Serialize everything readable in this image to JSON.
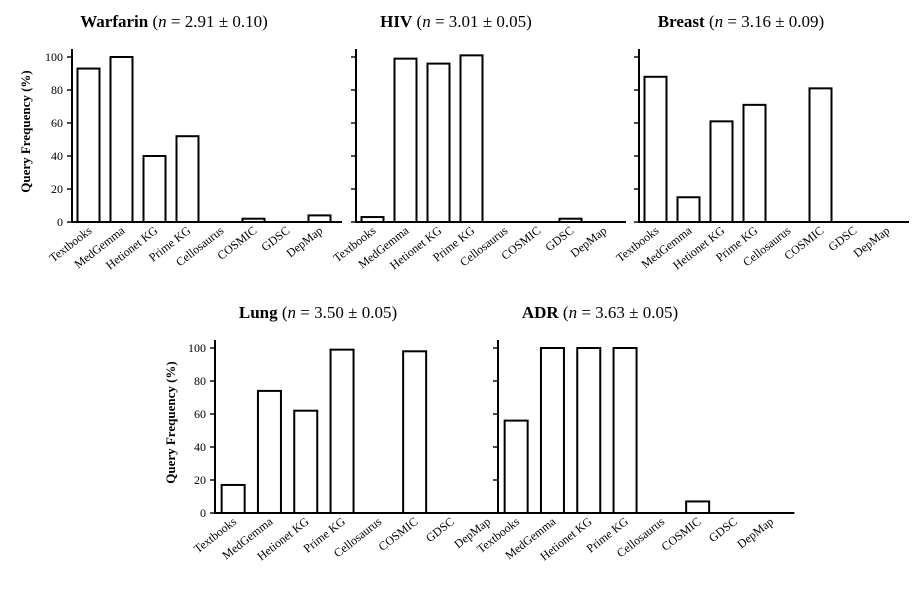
{
  "chart_data": [
    {
      "type": "bar",
      "title": "Warfarin",
      "subtitle_var": "n",
      "subtitle_value": " = 2.91 ± 0.10)",
      "ylabel": "Query Frequency (%)",
      "ylim": [
        0,
        100
      ],
      "yticks": [
        "0",
        "20",
        "40",
        "60",
        "80",
        "100"
      ],
      "categories": [
        "Textbooks",
        "MedGemma",
        "Hetionet KG",
        "Prime KG",
        "Cellosaurus",
        "COSMIC",
        "GDSC",
        "DepMap"
      ],
      "values": [
        93,
        100,
        40,
        52,
        0,
        2,
        0,
        4
      ]
    },
    {
      "type": "bar",
      "title": "HIV",
      "subtitle_var": "n",
      "subtitle_value": " = 3.01 ± 0.05)",
      "ylabel": "",
      "ylim": [
        0,
        100
      ],
      "yticks": [
        "",
        "",
        "",
        "",
        "",
        ""
      ],
      "categories": [
        "Textbooks",
        "MedGemma",
        "Hetionet KG",
        "Prime KG",
        "Cellosaurus",
        "COSMIC",
        "GDSC",
        "DepMap"
      ],
      "values": [
        3,
        99,
        96,
        101,
        0,
        0,
        2,
        0
      ]
    },
    {
      "type": "bar",
      "title": "Breast",
      "subtitle_var": "n",
      "subtitle_value": " = 3.16 ± 0.09)",
      "ylabel": "",
      "ylim": [
        0,
        100
      ],
      "yticks": [
        "",
        "",
        "",
        "",
        "",
        ""
      ],
      "categories": [
        "Textbooks",
        "MedGemma",
        "Hetionet KG",
        "Prime KG",
        "Cellosaurus",
        "COSMIC",
        "GDSC",
        "DepMap"
      ],
      "values": [
        88,
        15,
        61,
        71,
        0,
        81,
        0,
        0
      ]
    },
    {
      "type": "bar",
      "title": "Lung",
      "subtitle_var": "n",
      "subtitle_value": " = 3.50 ± 0.05)",
      "ylabel": "Query Frequency (%)",
      "ylim": [
        0,
        100
      ],
      "yticks": [
        "0",
        "20",
        "40",
        "60",
        "80",
        "100"
      ],
      "categories": [
        "Textbooks",
        "MedGemma",
        "Hetionet KG",
        "Prime KG",
        "Cellosaurus",
        "COSMIC",
        "GDSC",
        "DepMap"
      ],
      "values": [
        17,
        74,
        62,
        99,
        0,
        98,
        0,
        0
      ]
    },
    {
      "type": "bar",
      "title": "ADR",
      "subtitle_var": "n",
      "subtitle_value": " = 3.63 ± 0.05)",
      "ylabel": "",
      "ylim": [
        0,
        100
      ],
      "yticks": [
        "",
        "",
        "",
        "",
        "",
        ""
      ],
      "categories": [
        "Textbooks",
        "MedGemma",
        "Hetionet KG",
        "Prime KG",
        "Cellosaurus",
        "COSMIC",
        "GDSC",
        "DepMap"
      ],
      "values": [
        56,
        100,
        100,
        100,
        0,
        7,
        0,
        0
      ]
    }
  ]
}
